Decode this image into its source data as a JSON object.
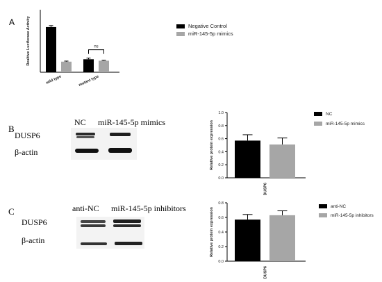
{
  "panels": {
    "a": {
      "letter": "A"
    },
    "b": {
      "letter": "B",
      "blot": {
        "lane_labels": [
          "NC",
          "miR-145-5p mimics"
        ],
        "row_labels": [
          "DUSP6",
          "β-actin"
        ]
      }
    },
    "c": {
      "letter": "C",
      "blot": {
        "lane_labels": [
          "anti-NC",
          "miR-145-5p inhibitors"
        ],
        "row_labels": [
          "DUSP6",
          "β-actin"
        ]
      }
    }
  },
  "colors": {
    "bar_primary": "#000000",
    "bar_secondary": "#a6a6a6",
    "text": "#1a1a1a"
  },
  "chart_data": [
    {
      "id": "luciferase",
      "type": "bar",
      "categories": [
        "wild type",
        "mutant type"
      ],
      "series": [
        {
          "name": "Negative Control",
          "values": [
            4.7,
            1.35
          ],
          "errors": [
            0.15,
            0.12
          ]
        },
        {
          "name": "miR-145-5p mimics",
          "values": [
            1.1,
            1.2
          ],
          "errors": [
            0.06,
            0.05
          ]
        }
      ],
      "ylabel": "Realtive Luciferase Activity",
      "ylim": [
        0,
        6.5
      ],
      "grid": false,
      "legend": "right",
      "annotations": [
        {
          "text": "*",
          "between": "wild type"
        },
        {
          "text": "ns",
          "between": "mutant type"
        }
      ]
    },
    {
      "id": "protein-b",
      "type": "bar",
      "categories": [
        "DUSP6"
      ],
      "series": [
        {
          "name": "NC",
          "values": [
            0.57
          ],
          "errors": [
            0.09
          ]
        },
        {
          "name": "miR-145-5p mimics",
          "values": [
            0.51
          ],
          "errors": [
            0.1
          ]
        }
      ],
      "ylabel": "Relative protein expression",
      "ylim": [
        0,
        1.0
      ],
      "yticks": [
        "0.0",
        "0.2",
        "0.4",
        "0.6",
        "0.8",
        "1.0"
      ],
      "grid": false,
      "legend": "right"
    },
    {
      "id": "protein-c",
      "type": "bar",
      "categories": [
        "DUSP6"
      ],
      "series": [
        {
          "name": "anti-NC",
          "values": [
            0.57
          ],
          "errors": [
            0.07
          ]
        },
        {
          "name": "miR-145-5p inhibitors",
          "values": [
            0.63
          ],
          "errors": [
            0.06
          ]
        }
      ],
      "ylabel": "Relative protein expression",
      "ylim": [
        0,
        0.8
      ],
      "yticks": [
        "0.0",
        "0.2",
        "0.4",
        "0.6",
        "0.8"
      ],
      "grid": false,
      "legend": "right"
    }
  ]
}
